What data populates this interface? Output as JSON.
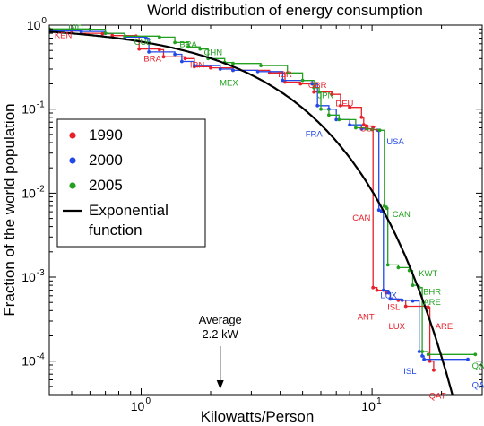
{
  "chart_data": {
    "type": "line",
    "title": "World distribution of energy consumption",
    "xlabel": "Kilowatts/Person",
    "ylabel": "Fraction of the world population",
    "xscale": "log",
    "yscale": "log",
    "xlim": [
      0.4,
      30
    ],
    "ylim": [
      4e-05,
      1
    ],
    "grid": false,
    "legend_placement": "left",
    "x_ticks": [
      {
        "value": 1,
        "label": "10",
        "exp": "0"
      },
      {
        "value": 10,
        "label": "10",
        "exp": "1"
      }
    ],
    "y_ticks": [
      {
        "value": 1,
        "label": "10",
        "exp": "0"
      },
      {
        "value": 0.1,
        "label": "10",
        "exp": "-1"
      },
      {
        "value": 0.01,
        "label": "10",
        "exp": "-2"
      },
      {
        "value": 0.001,
        "label": "10",
        "exp": "-3"
      },
      {
        "value": 0.0001,
        "label": "10",
        "exp": "-4"
      }
    ],
    "series": [
      {
        "name": "1990",
        "color": "#e8202a",
        "points": [
          [
            0.4,
            0.87
          ],
          [
            0.5,
            0.85
          ],
          [
            0.55,
            0.8
          ],
          [
            0.68,
            0.79
          ],
          [
            0.75,
            0.75
          ],
          [
            0.95,
            0.74
          ],
          [
            0.98,
            0.52
          ],
          [
            1.2,
            0.51
          ],
          [
            1.25,
            0.42
          ],
          [
            1.55,
            0.4
          ],
          [
            1.7,
            0.32
          ],
          [
            2.0,
            0.31
          ],
          [
            2.5,
            0.29
          ],
          [
            3.6,
            0.27
          ],
          [
            4.2,
            0.21
          ],
          [
            4.9,
            0.2
          ],
          [
            5.6,
            0.16
          ],
          [
            6.7,
            0.15
          ],
          [
            7.3,
            0.11
          ],
          [
            8.0,
            0.105
          ],
          [
            9.0,
            0.08
          ],
          [
            9.2,
            0.065
          ],
          [
            9.5,
            0.063
          ],
          [
            10.1,
            0.061
          ],
          [
            10.1,
            0.00075
          ],
          [
            10.5,
            0.0007
          ],
          [
            11.5,
            0.00065
          ],
          [
            12.0,
            0.00055
          ],
          [
            13.0,
            0.00053
          ],
          [
            14.0,
            0.00045
          ],
          [
            17.5,
            0.00044
          ],
          [
            17.8,
            0.0001
          ],
          [
            18.5,
            7.8e-05
          ]
        ]
      },
      {
        "name": "2000",
        "color": "#2248e8",
        "points": [
          [
            0.4,
            0.85
          ],
          [
            0.55,
            0.84
          ],
          [
            0.7,
            0.8
          ],
          [
            0.85,
            0.72
          ],
          [
            1.05,
            0.7
          ],
          [
            1.08,
            0.48
          ],
          [
            1.4,
            0.45
          ],
          [
            1.5,
            0.37
          ],
          [
            1.7,
            0.33
          ],
          [
            2.2,
            0.3
          ],
          [
            2.5,
            0.29
          ],
          [
            3.2,
            0.28
          ],
          [
            4.1,
            0.22
          ],
          [
            5.5,
            0.2
          ],
          [
            5.8,
            0.11
          ],
          [
            6.5,
            0.1
          ],
          [
            7.0,
            0.075
          ],
          [
            8.0,
            0.065
          ],
          [
            9.0,
            0.058
          ],
          [
            10.0,
            0.057
          ],
          [
            10.6,
            0.056
          ],
          [
            10.7,
            0.0063
          ],
          [
            11.0,
            0.006
          ],
          [
            11.2,
            0.0007
          ],
          [
            11.8,
            0.00065
          ],
          [
            12.0,
            0.00055
          ],
          [
            13.5,
            0.00053
          ],
          [
            15.0,
            0.00052
          ],
          [
            16.0,
            0.00013
          ],
          [
            16.5,
            0.000115
          ],
          [
            16.8,
            0.000105
          ],
          [
            26.0,
            0.000105
          ]
        ]
      },
      {
        "name": "2005",
        "color": "#23a020",
        "points": [
          [
            0.4,
            0.9
          ],
          [
            0.6,
            0.89
          ],
          [
            0.7,
            0.8
          ],
          [
            0.85,
            0.74
          ],
          [
            1.2,
            0.72
          ],
          [
            1.4,
            0.62
          ],
          [
            1.6,
            0.55
          ],
          [
            1.8,
            0.52
          ],
          [
            1.95,
            0.4
          ],
          [
            2.3,
            0.36
          ],
          [
            2.5,
            0.35
          ],
          [
            3.3,
            0.33
          ],
          [
            4.3,
            0.27
          ],
          [
            5.0,
            0.22
          ],
          [
            5.6,
            0.18
          ],
          [
            5.9,
            0.16
          ],
          [
            6.0,
            0.1
          ],
          [
            6.5,
            0.085
          ],
          [
            7.2,
            0.075
          ],
          [
            8.5,
            0.06
          ],
          [
            9.5,
            0.058
          ],
          [
            10.0,
            0.057
          ],
          [
            10.8,
            0.056
          ],
          [
            11.3,
            0.007
          ],
          [
            11.6,
            0.0066
          ],
          [
            11.7,
            0.0014
          ],
          [
            13.0,
            0.0013
          ],
          [
            14.5,
            0.0012
          ],
          [
            15.0,
            0.0008
          ],
          [
            16.0,
            0.00075
          ],
          [
            16.5,
            0.00013
          ],
          [
            17.5,
            0.00012
          ],
          [
            28.0,
            0.00012
          ]
        ]
      }
    ],
    "exponential_function": {
      "name": "Exponential function",
      "color": "#000000",
      "mean_kw": 2.2
    },
    "country_labels": [
      {
        "text": "IND",
        "x": 0.52,
        "y": 0.86,
        "series": "2005"
      },
      {
        "text": "KEN",
        "x": 0.46,
        "y": 0.7,
        "series": "1990"
      },
      {
        "text": "CUB",
        "x": 1.02,
        "y": 0.58,
        "series": "2005"
      },
      {
        "text": "BRA",
        "x": 1.6,
        "y": 0.55,
        "series": "2005"
      },
      {
        "text": "CHN",
        "x": 2.05,
        "y": 0.44,
        "series": "2005"
      },
      {
        "text": "BRA",
        "x": 1.12,
        "y": 0.37,
        "series": "1990"
      },
      {
        "text": "IRN",
        "x": 1.75,
        "y": 0.31,
        "series": "1990"
      },
      {
        "text": "MEX",
        "x": 2.4,
        "y": 0.19,
        "series": "2005"
      },
      {
        "text": "ISR",
        "x": 4.2,
        "y": 0.24,
        "series": "1990"
      },
      {
        "text": "GBR",
        "x": 5.8,
        "y": 0.18,
        "series": "1990"
      },
      {
        "text": "JPN",
        "x": 6.3,
        "y": 0.135,
        "series": "2005"
      },
      {
        "text": "DEU",
        "x": 7.6,
        "y": 0.108,
        "series": "1990"
      },
      {
        "text": "FRA",
        "x": 5.6,
        "y": 0.047,
        "series": "2000"
      },
      {
        "text": "USA",
        "x": 9.7,
        "y": 0.054,
        "series": "1990"
      },
      {
        "text": "USA",
        "x": 12.6,
        "y": 0.038,
        "series": "2000"
      },
      {
        "text": "CAN",
        "x": 9.0,
        "y": 0.0047,
        "series": "1990"
      },
      {
        "text": "CAN",
        "x": 13.4,
        "y": 0.0052,
        "series": "2005"
      },
      {
        "text": "KWT",
        "x": 17.5,
        "y": 0.00103,
        "series": "2005"
      },
      {
        "text": "BHR",
        "x": 18.2,
        "y": 0.00062,
        "series": "2005"
      },
      {
        "text": "ARE",
        "x": 18.2,
        "y": 0.00047,
        "series": "2005"
      },
      {
        "text": "LUX",
        "x": 11.8,
        "y": 0.00056,
        "series": "2000"
      },
      {
        "text": "ISL",
        "x": 12.4,
        "y": 0.00041,
        "series": "1990"
      },
      {
        "text": "ANT",
        "x": 9.4,
        "y": 0.00031,
        "series": "1990"
      },
      {
        "text": "LUX",
        "x": 12.8,
        "y": 0.00024,
        "series": "1990"
      },
      {
        "text": "ARE",
        "x": 20.5,
        "y": 0.00024,
        "series": "1990"
      },
      {
        "text": "ISL",
        "x": 14.6,
        "y": 7e-05,
        "series": "2000"
      },
      {
        "text": "QAT",
        "x": 29.5,
        "y": 8.2e-05,
        "series": "2005"
      },
      {
        "text": "QAT",
        "x": 29.5,
        "y": 4.8e-05,
        "series": "2000"
      },
      {
        "text": "QAT",
        "x": 19.2,
        "y": 3.6e-05,
        "series": "1990"
      }
    ],
    "legend": [
      {
        "label": "1990",
        "color": "#e8202a",
        "kind": "marker"
      },
      {
        "label": "2000",
        "color": "#2248e8",
        "kind": "marker"
      },
      {
        "label": "2005",
        "color": "#23a020",
        "kind": "marker"
      },
      {
        "label": "Exponential",
        "label2": "function",
        "color": "#000000",
        "kind": "line"
      }
    ],
    "annotation": {
      "line1": "Average",
      "line2": "2.2 kW",
      "x": 2.2
    }
  }
}
